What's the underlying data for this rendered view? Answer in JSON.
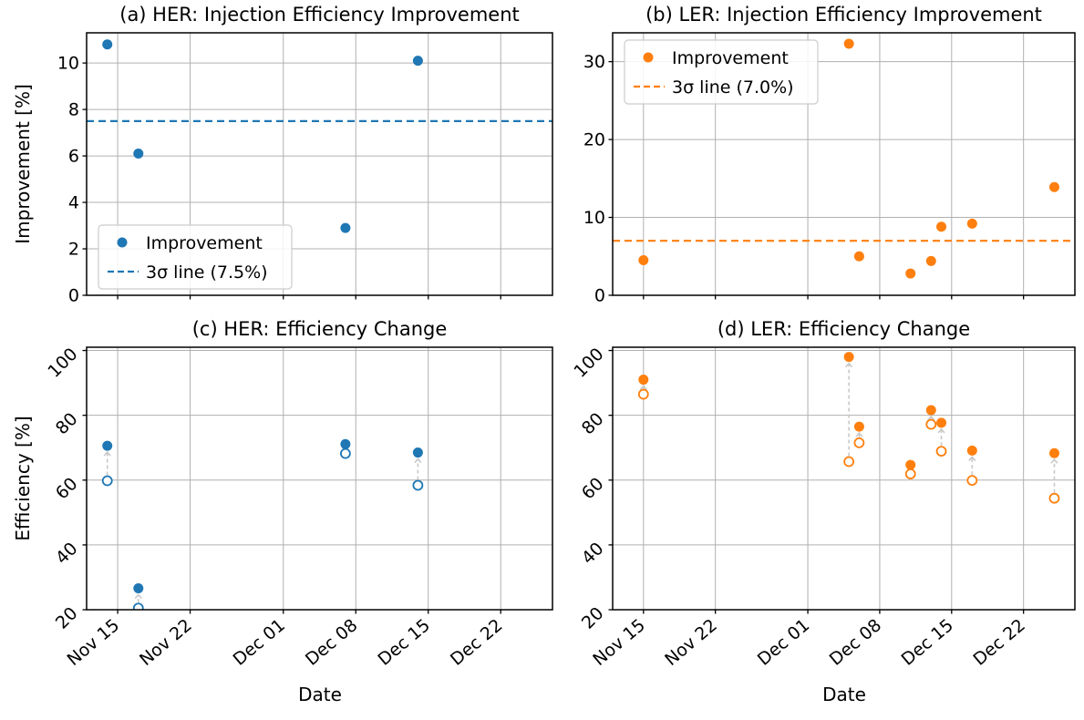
{
  "figure": {
    "background": "#ffffff",
    "axes": {
      "xlim_days": [
        12,
        57
      ],
      "xtick_days": [
        15,
        22,
        31,
        38,
        45,
        52
      ],
      "xtick_labels": [
        "Nov 15",
        "Nov 22",
        "Dec 01",
        "Dec 08",
        "Dec 15",
        "Dec 22"
      ],
      "grid_color": "#b0b0b0",
      "spine_color": "#000000",
      "tick_color": "#000000",
      "arrow_color": "#c9c9c9"
    }
  },
  "chart_data": [
    {
      "panel": "a",
      "type": "scatter",
      "title": "(a) HER: Injection Efficiency Improvement",
      "xlabel": "",
      "ylabel": "Improvement [%]",
      "color": "#1f77b4",
      "ylim": [
        0,
        11.3
      ],
      "yticks": [
        0,
        2,
        4,
        6,
        8,
        10
      ],
      "ytick_rotation": 0,
      "show_xtick_labels": false,
      "threshold": {
        "value": 7.5,
        "label": "3σ line (7.5%)"
      },
      "legend": {
        "marker_label": "Improvement",
        "line_label": "3σ line (7.5%)",
        "position": "lower-left"
      },
      "points": [
        {
          "date": "Nov 14",
          "day": 14,
          "improvement": 10.8
        },
        {
          "date": "Nov 17",
          "day": 17,
          "improvement": 6.1
        },
        {
          "date": "Dec 07",
          "day": 37,
          "improvement": 2.9
        },
        {
          "date": "Dec 14",
          "day": 44,
          "improvement": 10.1
        }
      ]
    },
    {
      "panel": "b",
      "type": "scatter",
      "title": "(b) LER: Injection Efficiency Improvement",
      "xlabel": "",
      "ylabel": "",
      "color": "#ff7f0e",
      "ylim": [
        0,
        33.7
      ],
      "yticks": [
        0,
        10,
        20,
        30
      ],
      "ytick_rotation": 0,
      "show_xtick_labels": false,
      "threshold": {
        "value": 7.0,
        "label": "3σ line (7.0%)"
      },
      "legend": {
        "marker_label": "Improvement",
        "line_label": "3σ line (7.0%)",
        "position": "upper-left"
      },
      "points": [
        {
          "date": "Nov 15",
          "day": 15,
          "improvement": 4.5
        },
        {
          "date": "Dec 05",
          "day": 35,
          "improvement": 32.3
        },
        {
          "date": "Dec 06",
          "day": 36,
          "improvement": 5.0
        },
        {
          "date": "Dec 11",
          "day": 41,
          "improvement": 2.8
        },
        {
          "date": "Dec 13",
          "day": 43,
          "improvement": 4.4
        },
        {
          "date": "Dec 14",
          "day": 44,
          "improvement": 8.8
        },
        {
          "date": "Dec 17",
          "day": 47,
          "improvement": 9.2
        },
        {
          "date": "Dec 25",
          "day": 55,
          "improvement": 13.9
        }
      ]
    },
    {
      "panel": "c",
      "type": "scatter-change",
      "title": "(c) HER: Efficiency Change",
      "xlabel": "Date",
      "ylabel": "Efficiency [%]",
      "color": "#1f77b4",
      "ylim": [
        20,
        101
      ],
      "yticks": [
        20,
        40,
        60,
        80,
        100
      ],
      "ytick_rotation": 45,
      "show_xtick_labels": true,
      "pairs": [
        {
          "date": "Nov 14",
          "day": 14,
          "before": 59.8,
          "after": 70.6
        },
        {
          "date": "Nov 17",
          "day": 17,
          "before": 20.5,
          "after": 26.6
        },
        {
          "date": "Dec 07",
          "day": 37,
          "before": 68.2,
          "after": 71.1
        },
        {
          "date": "Dec 14",
          "day": 44,
          "before": 58.4,
          "after": 68.5
        }
      ]
    },
    {
      "panel": "d",
      "type": "scatter-change",
      "title": "(d) LER: Efficiency Change",
      "xlabel": "Date",
      "ylabel": "",
      "color": "#ff7f0e",
      "ylim": [
        20,
        101
      ],
      "yticks": [
        20,
        40,
        60,
        80,
        100
      ],
      "ytick_rotation": 45,
      "show_xtick_labels": true,
      "pairs": [
        {
          "date": "Nov 15",
          "day": 15,
          "before": 86.5,
          "after": 91.0
        },
        {
          "date": "Dec 05",
          "day": 35,
          "before": 65.7,
          "after": 98.0
        },
        {
          "date": "Dec 06",
          "day": 36,
          "before": 71.5,
          "after": 76.5
        },
        {
          "date": "Dec 11",
          "day": 41,
          "before": 61.9,
          "after": 64.7
        },
        {
          "date": "Dec 13",
          "day": 43,
          "before": 77.2,
          "after": 81.6
        },
        {
          "date": "Dec 14",
          "day": 44,
          "before": 68.9,
          "after": 77.7
        },
        {
          "date": "Dec 17",
          "day": 47,
          "before": 59.9,
          "after": 69.1
        },
        {
          "date": "Dec 25",
          "day": 55,
          "before": 54.4,
          "after": 68.3
        }
      ]
    }
  ]
}
